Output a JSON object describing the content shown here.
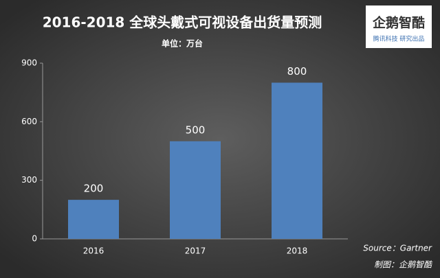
{
  "chart_data": {
    "type": "bar",
    "title": "2016-2018  全球头戴式可视设备出货量预测",
    "subtitle": "单位：万台",
    "categories": [
      "2016",
      "2017",
      "2018"
    ],
    "values": [
      200,
      500,
      800
    ],
    "color": "#4f81bd",
    "ylim": [
      0,
      900
    ],
    "yticks": [
      0,
      300,
      600,
      900
    ],
    "grid": false,
    "source": "Source：Gartner",
    "credit": "制图：企鹅智酷",
    "logo": {
      "name": "企鹅智酷",
      "tagline": "腾讯科技  研究出品"
    }
  }
}
